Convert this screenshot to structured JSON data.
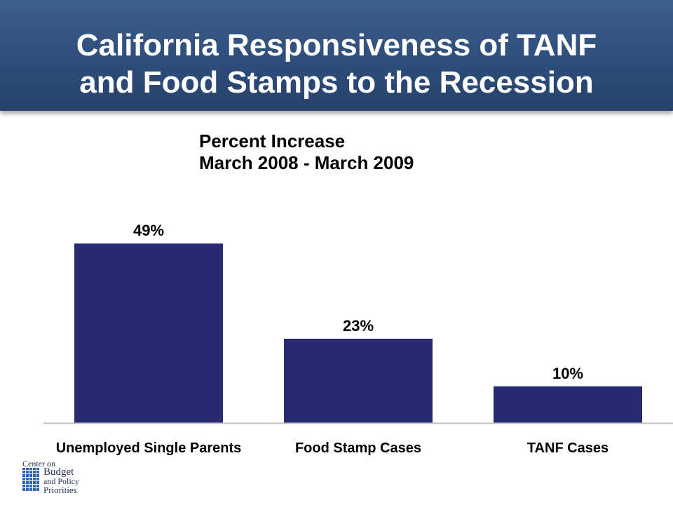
{
  "slide": {
    "title_line1": "California Responsiveness of TANF",
    "title_line2": "and Food Stamps to the Recession",
    "subtitle_line1": "Percent  Increase",
    "subtitle_line2": "March 2008 - March 2009"
  },
  "logo": {
    "line1": "Center on",
    "line2": "Budget",
    "line3": "and Policy",
    "line4": "Priorities"
  },
  "colors": {
    "title_banner": "#2e4d7a",
    "bar_fill": "#282a72",
    "axis_line": "#bfbfbf"
  },
  "chart_data": {
    "type": "bar",
    "title": "",
    "xlabel": "",
    "ylabel": "",
    "categories": [
      "Unemployed Single Parents",
      "Food Stamp Cases",
      "TANF Cases"
    ],
    "values": [
      49,
      23,
      10
    ],
    "value_labels": [
      "49%",
      "23%",
      "10%"
    ],
    "ylim": [
      0,
      55
    ],
    "grid": false,
    "legend": "none"
  }
}
